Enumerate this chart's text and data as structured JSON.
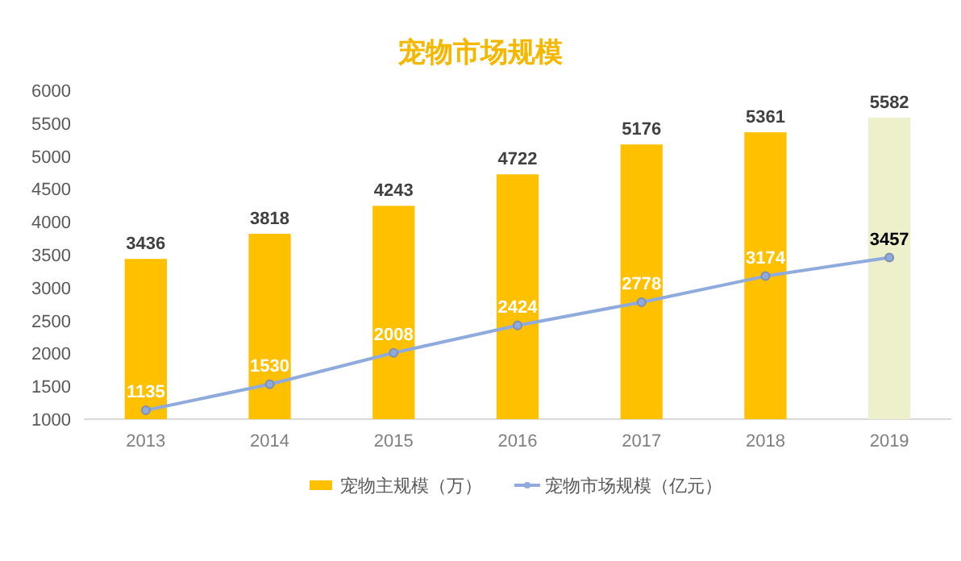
{
  "chart_data": {
    "type": "bar",
    "title": "宠物市场规模",
    "categories": [
      "2013",
      "2014",
      "2015",
      "2016",
      "2017",
      "2018",
      "2019"
    ],
    "series": [
      {
        "name": "宠物主规模（万）",
        "colors": [
          "#ffc000",
          "#ffc000",
          "#ffc000",
          "#ffc000",
          "#ffc000",
          "#ffc000",
          "#eef0cc"
        ],
        "color": "#ffc000",
        "values": [
          3436,
          3818,
          4243,
          4722,
          5176,
          5361,
          5582
        ]
      },
      {
        "name": "宠物市场规模（亿元）",
        "type": "line",
        "color": "#8faadc",
        "values": [
          1135,
          1530,
          2008,
          2424,
          2778,
          3174,
          3457
        ]
      }
    ],
    "ylim": [
      1000,
      6000
    ],
    "yticks": [
      1000,
      1500,
      2000,
      2500,
      3000,
      3500,
      4000,
      4500,
      5000,
      5500,
      6000
    ],
    "data_labels": true,
    "marker": "circle",
    "legend": "bottom",
    "grid": false
  }
}
